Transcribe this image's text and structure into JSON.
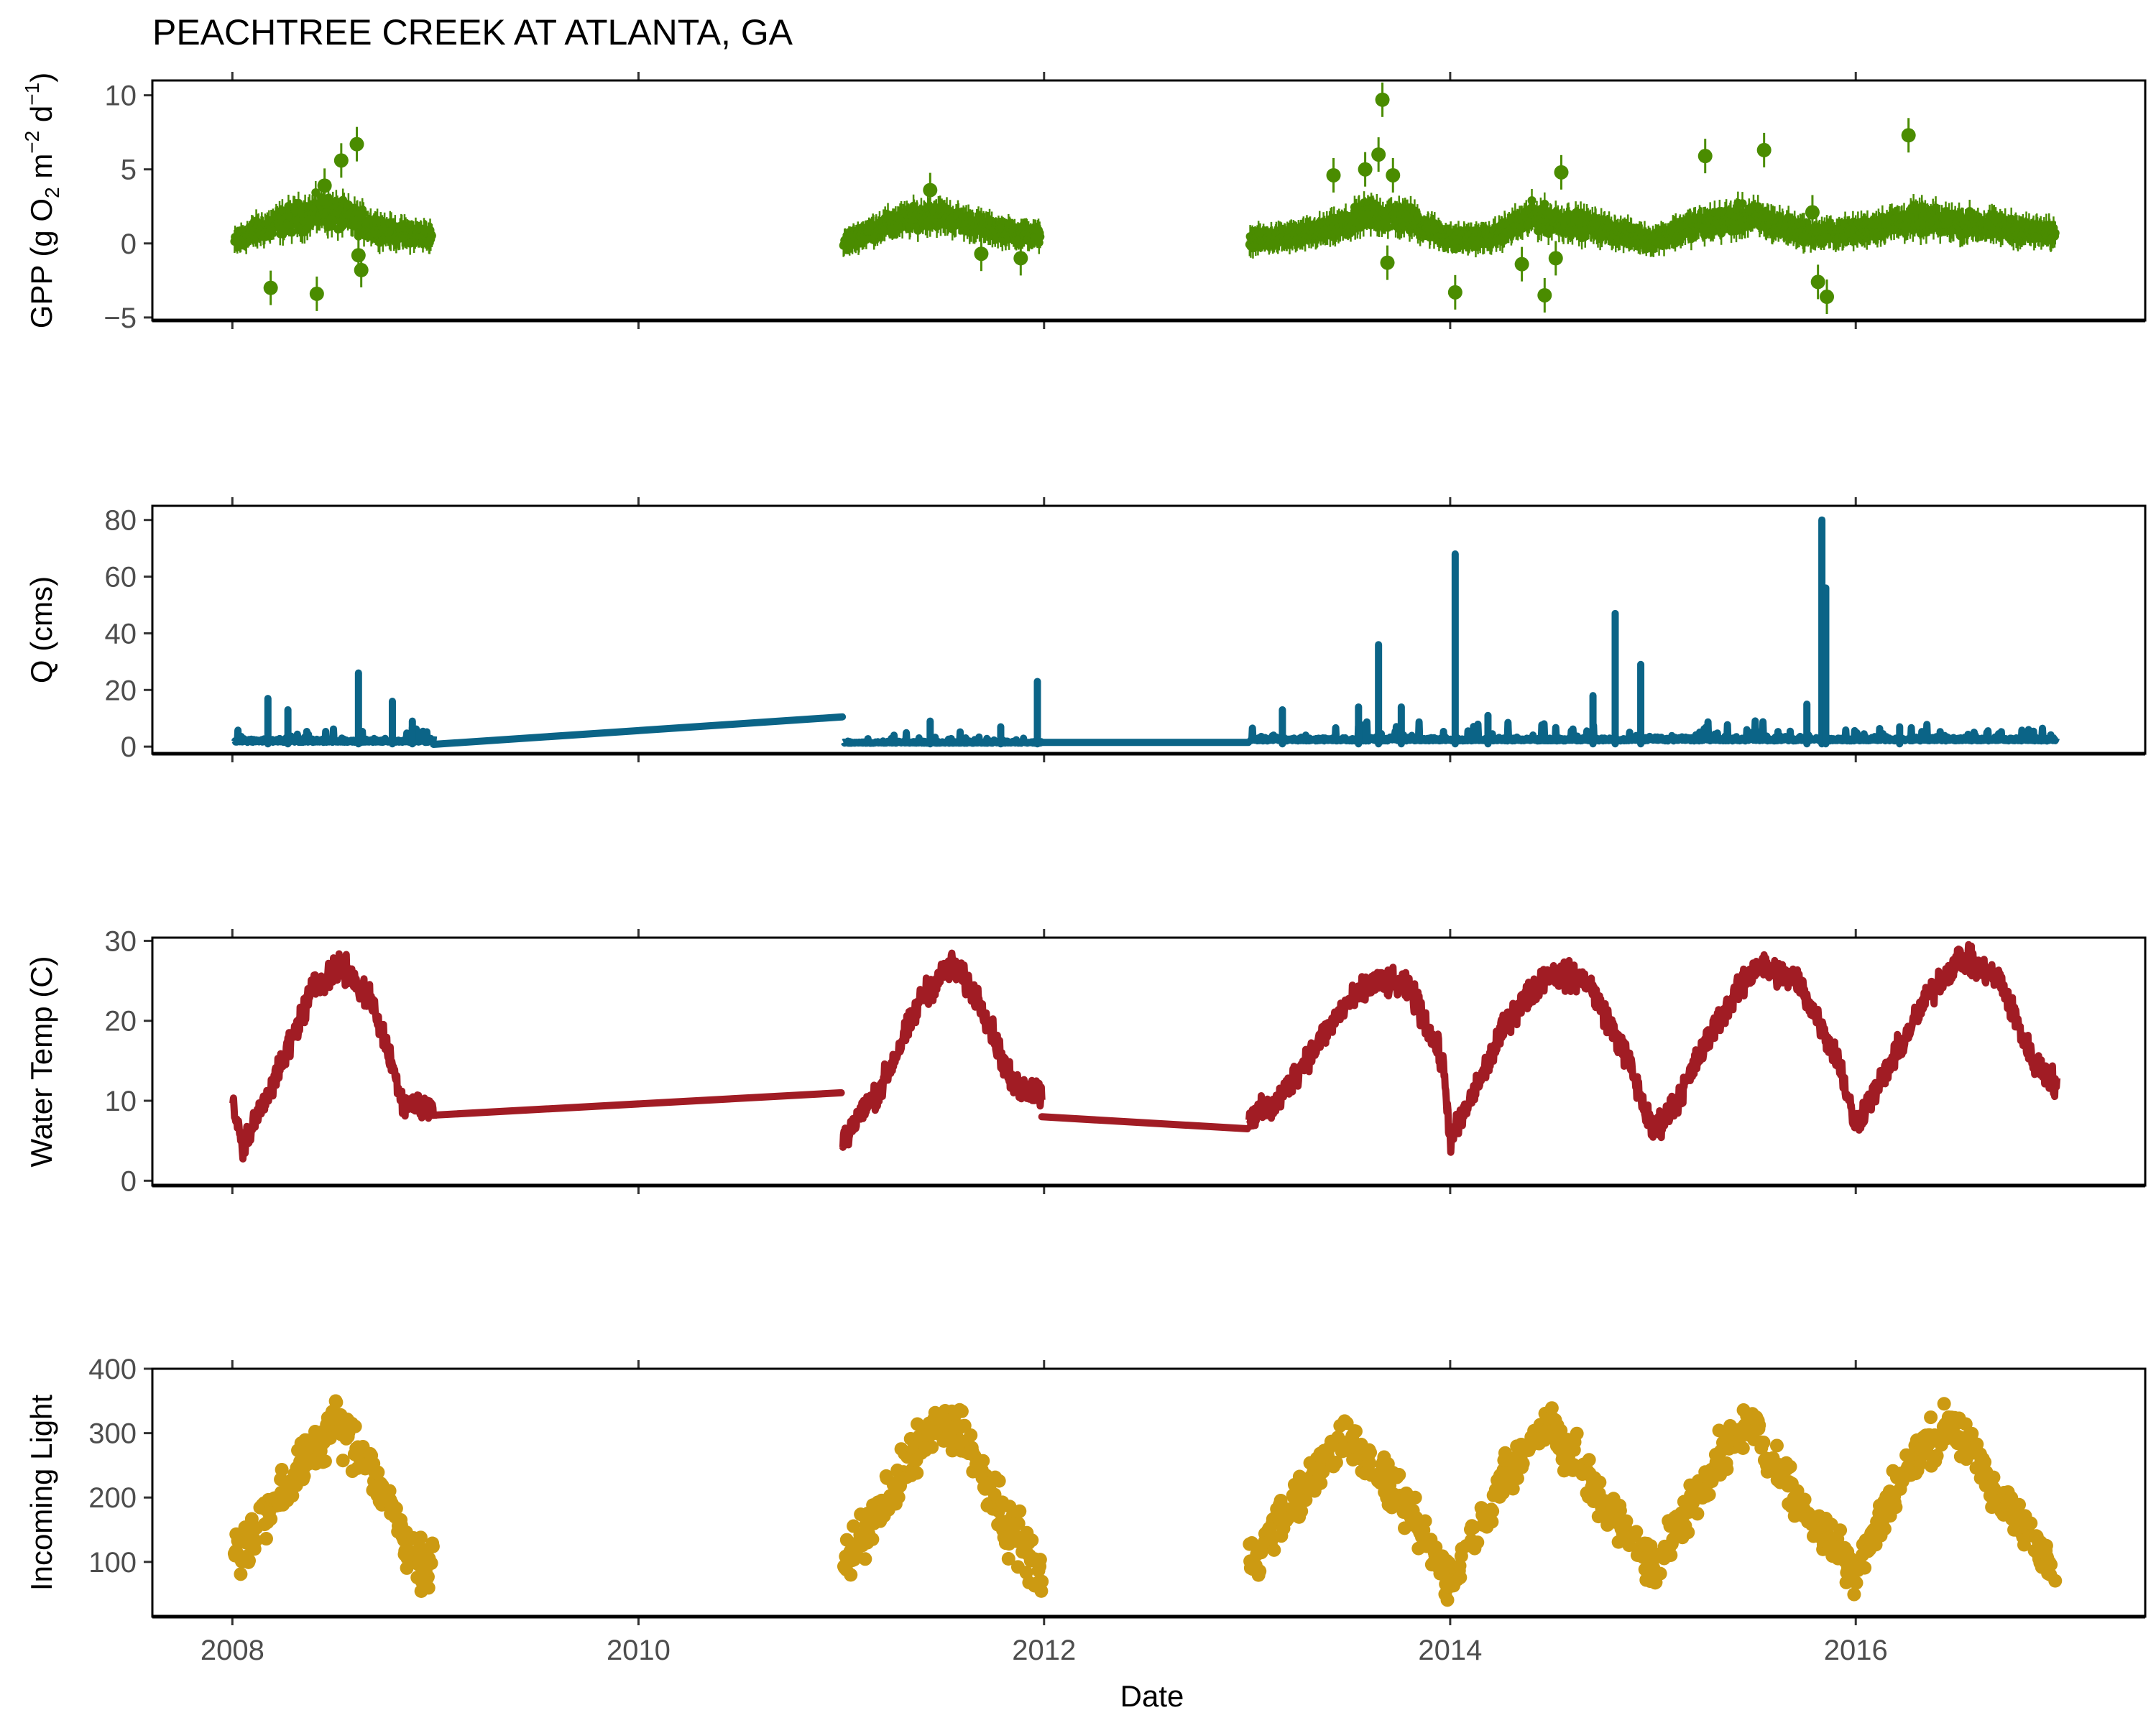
{
  "title": "PEACHTREE CREEK AT ATLANTA, GA",
  "xlabel": "Date",
  "x_ticks": [
    "2008",
    "2010",
    "2012",
    "2014",
    "2016"
  ],
  "chart_data": [
    {
      "type": "scatter",
      "panel": "gpp",
      "ylabel_parts": [
        "GPP (g  O",
        "2",
        " m",
        "−2",
        " d",
        "−1",
        ")"
      ],
      "ylim": [
        -5.2,
        11
      ],
      "yticks": [
        -5,
        0,
        5,
        10
      ],
      "color": "#4a8c00",
      "band_color": "#7a9a55",
      "error_bars": true,
      "segments": [
        {
          "x_start": "2008-01-05",
          "x_end": "2008-12-25",
          "curve": [
            [
              0,
              0.1
            ],
            [
              0.1,
              0.8
            ],
            [
              0.25,
              1.5
            ],
            [
              0.45,
              2.2
            ],
            [
              0.6,
              1.6
            ],
            [
              0.8,
              0.7
            ],
            [
              1,
              0.5
            ]
          ],
          "noise": 1.6
        },
        {
          "x_start": "2011-01-05",
          "x_end": "2011-12-25",
          "curve": [
            [
              0,
              0
            ],
            [
              0.2,
              1.2
            ],
            [
              0.45,
              2.0
            ],
            [
              0.6,
              1.5
            ],
            [
              0.8,
              0.8
            ],
            [
              1,
              0.5
            ]
          ],
          "noise": 1.2
        },
        {
          "x_start": "2013-01-05",
          "x_end": "2016-12-25",
          "curve": [
            [
              0,
              0.2
            ],
            [
              0.06,
              0.5
            ],
            [
              0.12,
              1.2
            ],
            [
              0.15,
              2.0
            ],
            [
              0.2,
              1.6
            ],
            [
              0.25,
              0.3
            ],
            [
              0.3,
              0.4
            ],
            [
              0.35,
              1.8
            ],
            [
              0.42,
              1.2
            ],
            [
              0.5,
              0.2
            ],
            [
              0.55,
              1.2
            ],
            [
              0.62,
              1.8
            ],
            [
              0.7,
              0.6
            ],
            [
              0.75,
              0.8
            ],
            [
              0.82,
              1.6
            ],
            [
              0.9,
              1.3
            ],
            [
              1,
              0.6
            ]
          ],
          "noise": 1.5
        }
      ],
      "outliers": [
        {
          "x": "2008-03-10",
          "y": -3.0
        },
        {
          "x": "2008-06-01",
          "y": -3.4
        },
        {
          "x": "2008-07-15",
          "y": 5.6
        },
        {
          "x": "2008-08-12",
          "y": 6.7
        },
        {
          "x": "2008-08-20",
          "y": -1.8
        },
        {
          "x": "2008-08-15",
          "y": -0.8
        },
        {
          "x": "2008-06-15",
          "y": 3.9
        },
        {
          "x": "2011-06-10",
          "y": 3.6
        },
        {
          "x": "2011-09-10",
          "y": -0.7
        },
        {
          "x": "2011-11-20",
          "y": -1.0
        },
        {
          "x": "2013-06-05",
          "y": 4.6
        },
        {
          "x": "2013-08-01",
          "y": 5.0
        },
        {
          "x": "2013-09-01",
          "y": 9.7
        },
        {
          "x": "2013-08-25",
          "y": 6.0
        },
        {
          "x": "2013-09-20",
          "y": 4.6
        },
        {
          "x": "2013-09-10",
          "y": -1.3
        },
        {
          "x": "2014-01-10",
          "y": -3.3
        },
        {
          "x": "2014-05-10",
          "y": -1.4
        },
        {
          "x": "2014-06-20",
          "y": -3.5
        },
        {
          "x": "2014-07-20",
          "y": 4.8
        },
        {
          "x": "2014-07-10",
          "y": -1.0
        },
        {
          "x": "2015-04-05",
          "y": 5.9
        },
        {
          "x": "2015-07-20",
          "y": 6.3
        },
        {
          "x": "2015-10-15",
          "y": 2.1
        },
        {
          "x": "2015-10-25",
          "y": -2.6
        },
        {
          "x": "2015-11-10",
          "y": -3.6
        },
        {
          "x": "2016-04-05",
          "y": 7.3
        }
      ]
    },
    {
      "type": "line",
      "panel": "discharge",
      "ylabel": "Q (cms)",
      "ylim": [
        -2.5,
        85
      ],
      "yticks": [
        0,
        20,
        40,
        60,
        80
      ],
      "color": "#0b6487",
      "segments": [
        {
          "x_start": "2008-01-05",
          "x_end": "2008-12-28",
          "base": 1.5,
          "noise": 2.5
        },
        {
          "x_start": "2011-01-05",
          "x_end": "2011-12-28",
          "base": 1.2,
          "noise": 1.5
        },
        {
          "x_start": "2013-01-05",
          "x_end": "2016-12-28",
          "base": 2.0,
          "noise": 3.0
        }
      ],
      "connectors": [
        {
          "from": [
            "2008-12-28",
            0.8
          ],
          "to": [
            "2011-01-03",
            10.5
          ]
        },
        {
          "from": [
            "2011-12-28",
            1.5
          ],
          "to": [
            "2013-01-03",
            1.5
          ]
        }
      ],
      "peaks": [
        {
          "x": "2008-03-05",
          "y": 17
        },
        {
          "x": "2008-04-10",
          "y": 13
        },
        {
          "x": "2008-08-15",
          "y": 26
        },
        {
          "x": "2008-10-15",
          "y": 16
        },
        {
          "x": "2008-11-20",
          "y": 9
        },
        {
          "x": "2011-06-10",
          "y": 9
        },
        {
          "x": "2011-10-15",
          "y": 7
        },
        {
          "x": "2011-12-20",
          "y": 23
        },
        {
          "x": "2013-03-05",
          "y": 13
        },
        {
          "x": "2013-07-20",
          "y": 14
        },
        {
          "x": "2013-08-25",
          "y": 36
        },
        {
          "x": "2013-10-05",
          "y": 14
        },
        {
          "x": "2014-01-10",
          "y": 68
        },
        {
          "x": "2014-03-10",
          "y": 11
        },
        {
          "x": "2014-09-15",
          "y": 18
        },
        {
          "x": "2014-10-25",
          "y": 47
        },
        {
          "x": "2014-12-10",
          "y": 29
        },
        {
          "x": "2015-10-05",
          "y": 15
        },
        {
          "x": "2015-11-01",
          "y": 80
        },
        {
          "x": "2015-11-08",
          "y": 56
        },
        {
          "x": "2016-03-20",
          "y": 7
        }
      ]
    },
    {
      "type": "line",
      "panel": "water_temp",
      "ylabel": "Water Temp (C)",
      "ylim": [
        -0.6,
        30.4
      ],
      "yticks": [
        0,
        10,
        20,
        30
      ],
      "color": "#a11c24",
      "segments": [
        {
          "x_start": "2008-01-01",
          "x_end": "2008-12-28",
          "curve": [
            [
              0,
              10
            ],
            [
              0.05,
              4
            ],
            [
              0.25,
              15
            ],
            [
              0.4,
              24
            ],
            [
              0.55,
              27
            ],
            [
              0.7,
              22
            ],
            [
              0.85,
              10
            ],
            [
              1,
              9
            ]
          ],
          "noise": 2.5
        },
        {
          "x_start": "2011-01-03",
          "x_end": "2011-12-28",
          "curve": [
            [
              0,
              5
            ],
            [
              0.2,
              12
            ],
            [
              0.4,
              23
            ],
            [
              0.55,
              27
            ],
            [
              0.7,
              22
            ],
            [
              0.85,
              12
            ],
            [
              1,
              11
            ]
          ],
          "noise": 2.5
        },
        {
          "x_start": "2013-01-03",
          "x_end": "2016-12-28",
          "curve": [
            [
              0,
              8
            ],
            [
              0.03,
              9
            ],
            [
              0.07,
              15
            ],
            [
              0.12,
              22
            ],
            [
              0.16,
              25
            ],
            [
              0.2,
              24
            ],
            [
              0.24,
              15
            ],
            [
              0.25,
              5
            ],
            [
              0.27,
              9
            ],
            [
              0.32,
              20
            ],
            [
              0.37,
              26
            ],
            [
              0.42,
              25
            ],
            [
              0.47,
              15
            ],
            [
              0.5,
              6
            ],
            [
              0.53,
              10
            ],
            [
              0.58,
              20
            ],
            [
              0.63,
              27
            ],
            [
              0.68,
              25
            ],
            [
              0.73,
              15
            ],
            [
              0.75,
              7
            ],
            [
              0.78,
              12
            ],
            [
              0.84,
              23
            ],
            [
              0.88,
              28
            ],
            [
              0.93,
              25
            ],
            [
              0.97,
              15
            ],
            [
              1,
              12
            ]
          ],
          "noise": 2.5
        }
      ],
      "connectors": [
        {
          "from": [
            "2008-12-28",
            8.2
          ],
          "to": [
            "2011-01-01",
            11
          ]
        },
        {
          "from": [
            "2011-12-28",
            8.0
          ],
          "to": [
            "2013-01-01",
            6.5
          ]
        }
      ]
    },
    {
      "type": "scatter",
      "panel": "light",
      "ylabel": "Incoming Light",
      "ylim": [
        15,
        400
      ],
      "yticks": [
        100,
        200,
        300,
        400
      ],
      "color": "#cc9a12",
      "segments": [
        {
          "x_start": "2008-01-05",
          "x_end": "2008-12-28",
          "curve": [
            [
              0,
              110
            ],
            [
              0.2,
              190
            ],
            [
              0.5,
              320
            ],
            [
              0.7,
              240
            ],
            [
              0.9,
              110
            ],
            [
              1,
              90
            ]
          ],
          "noise": 55
        },
        {
          "x_start": "2011-01-05",
          "x_end": "2011-12-28",
          "curve": [
            [
              0,
              90
            ],
            [
              0.2,
              190
            ],
            [
              0.45,
              310
            ],
            [
              0.6,
              300
            ],
            [
              0.8,
              170
            ],
            [
              1,
              80
            ]
          ],
          "noise": 55
        },
        {
          "x_start": "2013-01-05",
          "x_end": "2016-12-28",
          "curve": [
            [
              0,
              100
            ],
            [
              0.06,
              200
            ],
            [
              0.12,
              300
            ],
            [
              0.18,
              210
            ],
            [
              0.25,
              70
            ],
            [
              0.31,
              220
            ],
            [
              0.37,
              320
            ],
            [
              0.43,
              210
            ],
            [
              0.5,
              90
            ],
            [
              0.56,
              220
            ],
            [
              0.62,
              320
            ],
            [
              0.68,
              190
            ],
            [
              0.75,
              90
            ],
            [
              0.81,
              240
            ],
            [
              0.87,
              320
            ],
            [
              0.93,
              200
            ],
            [
              1,
              90
            ]
          ],
          "noise": 50
        }
      ]
    }
  ]
}
